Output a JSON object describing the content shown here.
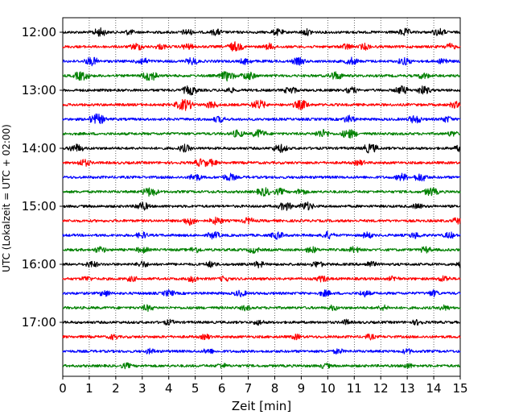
{
  "chart_data": {
    "type": "line",
    "title": "",
    "xlabel": "Zeit  [min]",
    "ylabel": "UTC (Lokalzeit = UTC + 02:00)",
    "xlim": [
      0,
      15
    ],
    "x_ticks": [
      "0",
      "1",
      "2",
      "3",
      "4",
      "5",
      "6",
      "7",
      "8",
      "9",
      "10",
      "11",
      "12",
      "13",
      "14",
      "15"
    ],
    "y_ticks": [
      "12:00",
      "13:00",
      "14:00",
      "15:00",
      "16:00",
      "17:00"
    ],
    "grid": "vertical dotted",
    "colors": [
      "#000000",
      "#ff0000",
      "#0000ff",
      "#008000"
    ],
    "series": [
      {
        "start": "12:00",
        "color": "#000000",
        "bursts": [
          [
            1.4,
            0.5
          ],
          [
            2.5,
            0.2
          ],
          [
            4.7,
            0.3
          ],
          [
            5.8,
            0.3
          ],
          [
            8.1,
            0.3
          ],
          [
            9.2,
            0.3
          ],
          [
            12.9,
            0.4
          ],
          [
            14.2,
            0.4
          ]
        ]
      },
      {
        "start": "12:15",
        "color": "#ff0000",
        "bursts": [
          [
            2.8,
            0.4
          ],
          [
            3.7,
            0.2
          ],
          [
            4.7,
            0.3
          ],
          [
            6.5,
            0.6
          ],
          [
            7.8,
            0.3
          ],
          [
            10.7,
            0.3
          ],
          [
            11.4,
            0.3
          ],
          [
            14.6,
            0.3
          ]
        ]
      },
      {
        "start": "12:30",
        "color": "#0000ff",
        "bursts": [
          [
            1.1,
            0.5
          ],
          [
            3.0,
            0.4
          ],
          [
            4.9,
            0.4
          ],
          [
            6.9,
            0.3
          ],
          [
            8.9,
            0.4
          ],
          [
            10.9,
            0.4
          ],
          [
            12.9,
            0.4
          ],
          [
            14.4,
            0.3
          ]
        ]
      },
      {
        "start": "12:45",
        "color": "#008000",
        "bursts": [
          [
            0.7,
            0.6
          ],
          [
            3.3,
            0.7
          ],
          [
            6.2,
            0.6
          ],
          [
            7.0,
            0.5
          ],
          [
            10.3,
            0.5
          ],
          [
            13.6,
            0.3
          ]
        ]
      },
      {
        "start": "13:00",
        "color": "#000000",
        "bursts": [
          [
            4.8,
            0.6
          ],
          [
            6.3,
            0.2
          ],
          [
            8.6,
            0.4
          ],
          [
            10.9,
            0.3
          ],
          [
            12.8,
            0.5
          ],
          [
            13.6,
            0.5
          ]
        ]
      },
      {
        "start": "13:15",
        "color": "#ff0000",
        "bursts": [
          [
            4.6,
            0.8
          ],
          [
            5.6,
            0.4
          ],
          [
            7.4,
            0.6
          ],
          [
            9.0,
            0.6
          ],
          [
            14.8,
            0.3
          ]
        ]
      },
      {
        "start": "13:30",
        "color": "#0000ff",
        "bursts": [
          [
            1.3,
            0.7
          ],
          [
            5.9,
            0.3
          ],
          [
            10.8,
            0.4
          ],
          [
            13.3,
            0.5
          ],
          [
            14.5,
            0.3
          ]
        ]
      },
      {
        "start": "13:45",
        "color": "#008000",
        "bursts": [
          [
            6.6,
            0.4
          ],
          [
            7.4,
            0.5
          ],
          [
            9.8,
            0.5
          ],
          [
            10.8,
            0.6
          ],
          [
            14.7,
            0.2
          ]
        ]
      },
      {
        "start": "14:00",
        "color": "#000000",
        "bursts": [
          [
            0.5,
            0.5
          ],
          [
            4.6,
            0.4
          ],
          [
            8.2,
            0.5
          ],
          [
            11.6,
            0.6
          ],
          [
            15.0,
            0.3
          ]
        ]
      },
      {
        "start": "14:15",
        "color": "#ff0000",
        "bursts": [
          [
            0.8,
            0.4
          ],
          [
            5.2,
            0.4
          ],
          [
            5.6,
            0.3
          ],
          [
            11.2,
            0.2
          ]
        ]
      },
      {
        "start": "14:30",
        "color": "#0000ff",
        "bursts": [
          [
            5.0,
            0.4
          ],
          [
            6.3,
            0.4
          ],
          [
            12.8,
            0.4
          ],
          [
            13.5,
            0.5
          ]
        ]
      },
      {
        "start": "14:45",
        "color": "#008000",
        "bursts": [
          [
            3.3,
            0.6
          ],
          [
            7.6,
            0.5
          ],
          [
            8.2,
            0.3
          ],
          [
            9.0,
            0.3
          ],
          [
            13.9,
            0.5
          ]
        ]
      },
      {
        "start": "15:00",
        "color": "#000000",
        "bursts": [
          [
            3.0,
            0.5
          ],
          [
            8.4,
            0.5
          ],
          [
            9.2,
            0.5
          ],
          [
            13.4,
            0.2
          ]
        ]
      },
      {
        "start": "15:15",
        "color": "#ff0000",
        "bursts": [
          [
            4.8,
            0.5
          ],
          [
            5.8,
            0.4
          ],
          [
            7.0,
            0.3
          ],
          [
            14.9,
            0.3
          ]
        ]
      },
      {
        "start": "15:30",
        "color": "#0000ff",
        "bursts": [
          [
            3.0,
            0.3
          ],
          [
            5.7,
            0.4
          ],
          [
            8.1,
            0.4
          ],
          [
            10.0,
            0.4
          ],
          [
            11.5,
            0.3
          ],
          [
            13.3,
            0.3
          ],
          [
            14.6,
            0.3
          ]
        ]
      },
      {
        "start": "15:45",
        "color": "#008000",
        "bursts": [
          [
            1.4,
            0.3
          ],
          [
            3.0,
            0.3
          ],
          [
            5.0,
            0.3
          ],
          [
            7.2,
            0.3
          ],
          [
            9.4,
            0.3
          ],
          [
            11.0,
            0.3
          ],
          [
            13.7,
            0.3
          ]
        ]
      },
      {
        "start": "16:00",
        "color": "#000000",
        "bursts": [
          [
            1.1,
            0.3
          ],
          [
            3.0,
            0.3
          ],
          [
            5.6,
            0.3
          ],
          [
            7.4,
            0.3
          ],
          [
            9.6,
            0.3
          ],
          [
            11.6,
            0.3
          ],
          [
            15.0,
            0.2
          ]
        ]
      },
      {
        "start": "16:15",
        "color": "#ff0000",
        "bursts": [
          [
            0.9,
            0.2
          ],
          [
            2.6,
            0.2
          ],
          [
            4.9,
            0.3
          ],
          [
            6.1,
            0.2
          ],
          [
            9.8,
            0.3
          ],
          [
            12.5,
            0.2
          ],
          [
            14.4,
            0.3
          ]
        ]
      },
      {
        "start": "16:30",
        "color": "#0000ff",
        "bursts": [
          [
            1.6,
            0.3
          ],
          [
            4.0,
            0.3
          ],
          [
            6.7,
            0.3
          ],
          [
            9.9,
            0.3
          ],
          [
            11.4,
            0.3
          ],
          [
            14.0,
            0.3
          ]
        ]
      },
      {
        "start": "16:45",
        "color": "#008000",
        "bursts": [
          [
            3.2,
            0.3
          ],
          [
            6.9,
            0.2
          ],
          [
            10.2,
            0.2
          ],
          [
            12.1,
            0.2
          ],
          [
            14.4,
            0.2
          ]
        ]
      },
      {
        "start": "17:00",
        "color": "#000000",
        "bursts": [
          [
            4.0,
            0.2
          ],
          [
            7.4,
            0.2
          ],
          [
            10.7,
            0.2
          ],
          [
            13.4,
            0.2
          ]
        ]
      },
      {
        "start": "17:15",
        "color": "#ff0000",
        "bursts": [
          [
            1.9,
            0.2
          ],
          [
            5.4,
            0.2
          ],
          [
            8.8,
            0.2
          ],
          [
            11.6,
            0.2
          ]
        ]
      },
      {
        "start": "17:30",
        "color": "#0000ff",
        "bursts": [
          [
            3.3,
            0.2
          ],
          [
            5.5,
            0.2
          ],
          [
            10.4,
            0.2
          ],
          [
            13.0,
            0.2
          ]
        ]
      },
      {
        "start": "17:45",
        "color": "#008000",
        "bursts": [
          [
            2.4,
            0.2
          ],
          [
            6.0,
            0.2
          ],
          [
            9.9,
            0.2
          ],
          [
            13.0,
            0.2
          ]
        ]
      }
    ]
  }
}
